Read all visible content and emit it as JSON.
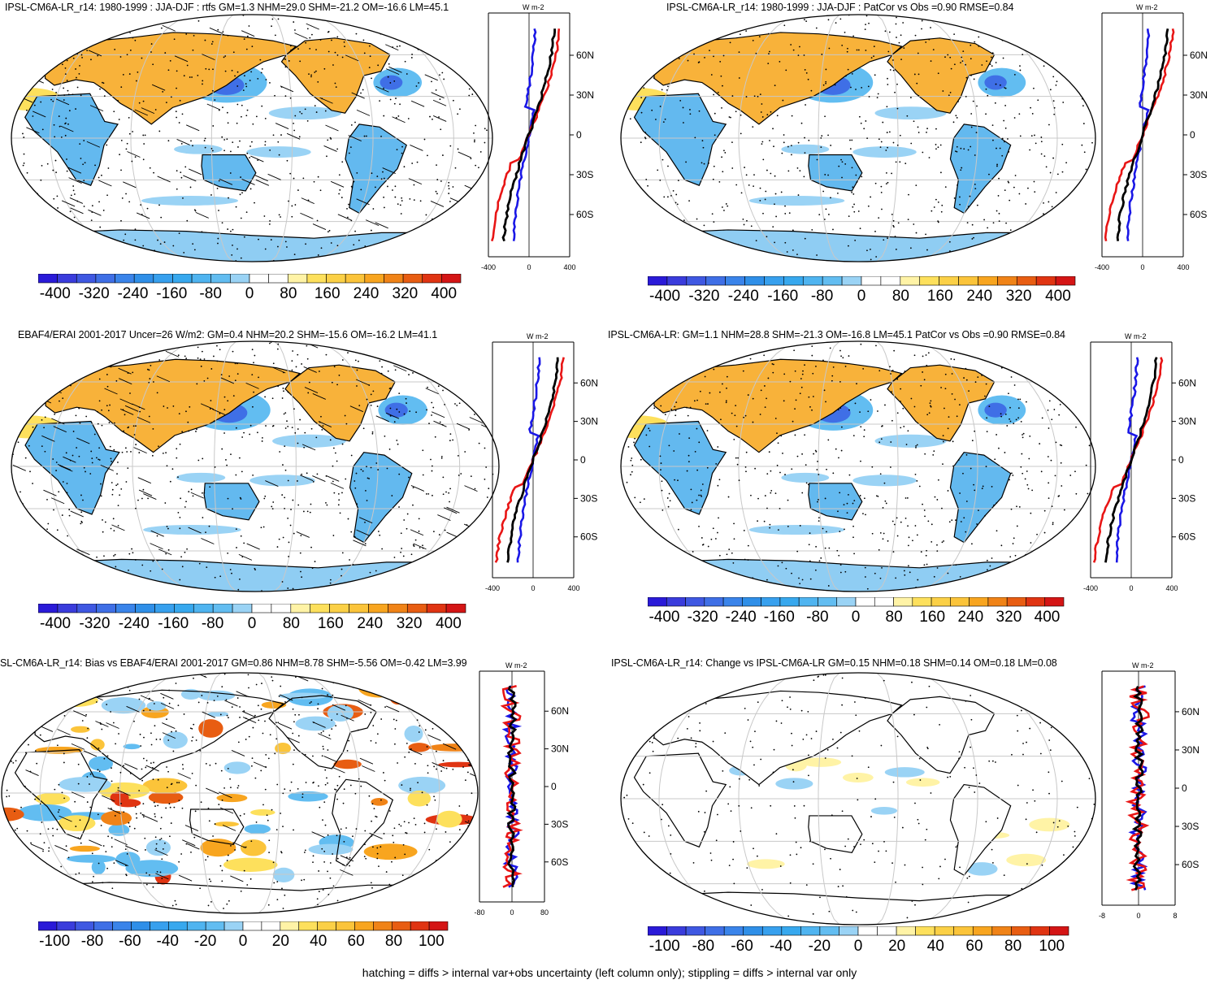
{
  "footer": "hatching = diffs > internal var+obs uncertainty (left column only); stippling = diffs > internal var only",
  "colors": {
    "scale": [
      "#2a1ad8",
      "#3a46e0",
      "#3f6fe6",
      "#2f8fe8",
      "#37a8ee",
      "#62bdf1",
      "#9ad3f5",
      "#ffffff",
      "#ffffff",
      "#fff3a6",
      "#fde05c",
      "#fbc43a",
      "#f8a51f",
      "#f08317",
      "#e85d12",
      "#e03412",
      "#d41515"
    ],
    "ocean_default": "#ffffff",
    "land_warm": "#f8b23a",
    "land_cool": "#63b9ef",
    "line_model": "#1a17e6",
    "line_obs": "#e81515",
    "line_diff": "#000000",
    "grid": "#c8c8c8"
  },
  "panels": [
    {
      "id": "tl",
      "title": "IPSL-CM6A-LR_r14: 1980-1999 : JJA-DJF : rtfs GM=1.3 NHM=29.0 SHM=-21.2 OM=-16.6 LM=45.1",
      "cbar_labels": [
        "-400",
        "-320",
        "-240",
        "-160",
        "-80",
        "0",
        "80",
        "160",
        "240",
        "320",
        "400"
      ],
      "profile_unit": "W m-2",
      "profile_lat_labels": [
        "60N",
        "30N",
        "0",
        "30S",
        "60S"
      ],
      "profile_x_ticks": [
        "-400",
        "0",
        "400"
      ],
      "hatching": true,
      "style": "seasonal"
    },
    {
      "id": "tr",
      "title": "IPSL-CM6A-LR_r14: 1980-1999 : JJA-DJF : PatCor vs Obs =0.90 RMSE=0.84",
      "cbar_labels": [
        "-400",
        "-320",
        "-240",
        "-160",
        "-80",
        "0",
        "80",
        "160",
        "240",
        "320",
        "400"
      ],
      "profile_unit": "W m-2",
      "profile_lat_labels": [
        "60N",
        "30N",
        "0",
        "30S",
        "60S"
      ],
      "profile_x_ticks": [
        "-400",
        "0",
        "400"
      ],
      "hatching": false,
      "style": "seasonal"
    },
    {
      "id": "ml",
      "title": "EBAF4/ERAI 2001-2017 Uncer=26 W/m2: GM=0.4 NHM=20.2 SHM=-15.6 OM=-16.2 LM=41.1",
      "cbar_labels": [
        "-400",
        "-320",
        "-240",
        "-160",
        "-80",
        "0",
        "80",
        "160",
        "240",
        "320",
        "400"
      ],
      "profile_unit": "W m-2",
      "profile_lat_labels": [
        "60N",
        "30N",
        "0",
        "30S",
        "60S"
      ],
      "profile_x_ticks": [
        "-400",
        "0",
        "400"
      ],
      "hatching": true,
      "style": "seasonal"
    },
    {
      "id": "mr",
      "title": "IPSL-CM6A-LR: GM=1.1 NHM=28.8 SHM=-21.3 OM=-16.8 LM=45.1 PatCor vs Obs =0.90 RMSE=0.84",
      "cbar_labels": [
        "-400",
        "-320",
        "-240",
        "-160",
        "-80",
        "0",
        "80",
        "160",
        "240",
        "320",
        "400"
      ],
      "profile_unit": "W m-2",
      "profile_lat_labels": [
        "60N",
        "30N",
        "0",
        "30S",
        "60S"
      ],
      "profile_x_ticks": [
        "-400",
        "0",
        "400"
      ],
      "hatching": false,
      "style": "seasonal"
    },
    {
      "id": "bl",
      "title": "SL-CM6A-LR_r14: Bias vs EBAF4/ERAI 2001-2017 GM=0.86 NHM=8.78 SHM=-5.56 OM=-0.42 LM=3.99",
      "cbar_labels": [
        "-100",
        "-80",
        "-60",
        "-40",
        "-20",
        "0",
        "20",
        "40",
        "60",
        "80",
        "100"
      ],
      "profile_unit": "W m-2",
      "profile_lat_labels": [
        "60N",
        "30N",
        "0",
        "30S",
        "60S"
      ],
      "profile_x_ticks": [
        "-80",
        "0",
        "80"
      ],
      "hatching": true,
      "style": "bias"
    },
    {
      "id": "br",
      "title": "IPSL-CM6A-LR_r14: Change vs IPSL-CM6A-LR GM=0.15 NHM=0.18 SHM=0.14 OM=0.18 LM=0.08",
      "cbar_labels": [
        "-100",
        "-80",
        "-60",
        "-40",
        "-20",
        "0",
        "20",
        "40",
        "60",
        "80",
        "100"
      ],
      "profile_unit": "W m-2",
      "profile_lat_labels": [
        "60N",
        "30N",
        "0",
        "30S",
        "60S"
      ],
      "profile_x_ticks": [
        "-8",
        "0",
        "8"
      ],
      "hatching": false,
      "style": "change"
    }
  ],
  "chart_data": [
    {
      "type": "heatmap",
      "title": "IPSL-CM6A-LR_r14: 1980-1999 : JJA-DJF : rtfs GM=1.3 NHM=29.0 SHM=-21.2 OM=-16.6 LM=45.1",
      "colorbar_ticks": [
        -400,
        -320,
        -240,
        -160,
        -80,
        0,
        80,
        160,
        240,
        320,
        400
      ],
      "global_means": {
        "GM": 1.3,
        "NHM": 29.0,
        "SHM": -21.2,
        "OM": -16.6,
        "LM": 45.1
      }
    },
    {
      "type": "heatmap",
      "title": "IPSL-CM6A-LR_r14: 1980-1999 : JJA-DJF : PatCor vs Obs =0.90 RMSE=0.84",
      "colorbar_ticks": [
        -400,
        -320,
        -240,
        -160,
        -80,
        0,
        80,
        160,
        240,
        320,
        400
      ],
      "stats": {
        "PatCor": 0.9,
        "RMSE": 0.84
      }
    },
    {
      "type": "heatmap",
      "title": "EBAF4/ERAI 2001-2017 Uncer=26 W/m2: GM=0.4 NHM=20.2 SHM=-15.6 OM=-16.2 LM=41.1",
      "colorbar_ticks": [
        -400,
        -320,
        -240,
        -160,
        -80,
        0,
        80,
        160,
        240,
        320,
        400
      ],
      "global_means": {
        "GM": 0.4,
        "NHM": 20.2,
        "SHM": -15.6,
        "OM": -16.2,
        "LM": 41.1
      }
    },
    {
      "type": "heatmap",
      "title": "IPSL-CM6A-LR: GM=1.1 NHM=28.8 SHM=-21.3 OM=-16.8 LM=45.1 PatCor vs Obs =0.90 RMSE=0.84",
      "colorbar_ticks": [
        -400,
        -320,
        -240,
        -160,
        -80,
        0,
        80,
        160,
        240,
        320,
        400
      ],
      "global_means": {
        "GM": 1.1,
        "NHM": 28.8,
        "SHM": -21.3,
        "OM": -16.8,
        "LM": 45.1
      }
    },
    {
      "type": "heatmap",
      "title": "SL-CM6A-LR_r14: Bias vs EBAF4/ERAI 2001-2017 GM=0.86 NHM=8.78 SHM=-5.56 OM=-0.42 LM=3.99",
      "colorbar_ticks": [
        -100,
        -80,
        -60,
        -40,
        -20,
        0,
        20,
        40,
        60,
        80,
        100
      ],
      "global_means": {
        "GM": 0.86,
        "NHM": 8.78,
        "SHM": -5.56,
        "OM": -0.42,
        "LM": 3.99
      }
    },
    {
      "type": "heatmap",
      "title": "IPSL-CM6A-LR_r14: Change vs IPSL-CM6A-LR GM=0.15 NHM=0.18 SHM=0.14 OM=0.18 LM=0.08",
      "colorbar_ticks": [
        -100,
        -80,
        -60,
        -40,
        -20,
        0,
        20,
        40,
        60,
        80,
        100
      ],
      "global_means": {
        "GM": 0.15,
        "NHM": 0.18,
        "SHM": 0.14,
        "OM": 0.18,
        "LM": 0.08
      }
    }
  ]
}
